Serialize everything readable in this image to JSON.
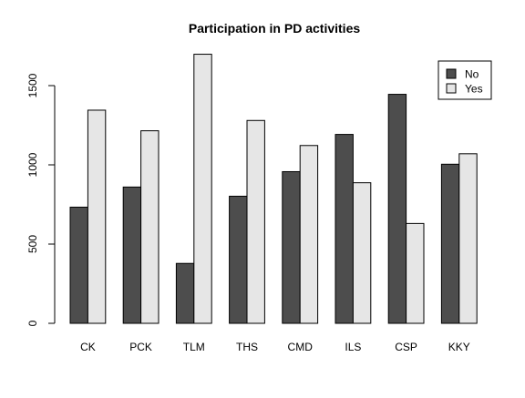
{
  "chart_data": {
    "type": "bar",
    "title": "Participation in PD activities",
    "xlabel": "",
    "ylabel": "",
    "categories": [
      "CK",
      "PCK",
      "TLM",
      "THS",
      "CMD",
      "ILS",
      "CSP",
      "KKY"
    ],
    "series": [
      {
        "name": "No",
        "values": [
          733,
          860,
          378,
          802,
          957,
          1192,
          1445,
          1004
        ],
        "color": "#4d4d4d"
      },
      {
        "name": "Yes",
        "values": [
          1345,
          1215,
          1698,
          1280,
          1122,
          887,
          630,
          1070
        ],
        "color": "#e6e6e6"
      }
    ],
    "ylim": [
      0,
      1600
    ],
    "yticks": [
      0,
      500,
      1000,
      1500
    ],
    "ytick_labels": [
      "0",
      "500",
      "1000",
      "1500"
    ],
    "grid": false,
    "legend": {
      "placement": "top-right",
      "entries": [
        "No",
        "Yes"
      ]
    }
  }
}
